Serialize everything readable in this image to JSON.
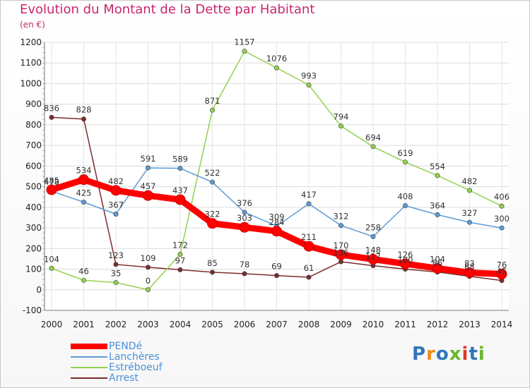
{
  "title": "Evolution du Montant de la Dette par Habitant",
  "subtitle": "(en €)",
  "logo": {
    "text": "Proxiti",
    "colors": [
      "#2e77bb",
      "#f08a1c",
      "#2e77bb",
      "#6ab82e",
      "#d93a2a",
      "#2e77bb",
      "#6ab82e"
    ]
  },
  "chart_data": {
    "type": "line",
    "x": [
      2000,
      2001,
      2002,
      2003,
      2004,
      2005,
      2006,
      2007,
      2008,
      2009,
      2010,
      2011,
      2012,
      2013,
      2014
    ],
    "ylim": [
      -100,
      1200
    ],
    "yticks": [
      -100,
      0,
      100,
      200,
      300,
      400,
      500,
      600,
      700,
      800,
      900,
      1000,
      1100,
      1200
    ],
    "grid": true,
    "legend_position": "bottom-left",
    "series": [
      {
        "name": "PENDé",
        "color": "#ff0000",
        "values": [
          485,
          534,
          482,
          457,
          437,
          322,
          303,
          284,
          211,
          170,
          148,
          126,
          104,
          83,
          76
        ],
        "labels": [
          "485",
          "534",
          "482",
          "457",
          "437",
          "322",
          "303",
          "284",
          "211",
          "170",
          "148",
          "126",
          "104",
          "83",
          "76"
        ]
      },
      {
        "name": "Lanchères",
        "color": "#5b9bd5",
        "values": [
          478,
          425,
          367,
          591,
          589,
          522,
          376,
          309,
          417,
          312,
          258,
          408,
          364,
          327,
          300
        ],
        "labels": [
          "478",
          "425",
          "367",
          "591",
          "589",
          "522",
          "376",
          "309",
          "417",
          "312",
          "258",
          "408",
          "364",
          "327",
          "300"
        ]
      },
      {
        "name": "Estréboeuf",
        "color": "#92d050",
        "values": [
          104,
          46,
          35,
          0,
          172,
          871,
          1157,
          1076,
          993,
          794,
          694,
          619,
          554,
          482,
          406
        ],
        "labels": [
          "104",
          "46",
          "35",
          "0",
          "172",
          "871",
          "1157",
          "1076",
          "993",
          "794",
          "694",
          "619",
          "554",
          "482",
          "406"
        ]
      },
      {
        "name": "Arrest",
        "color": "#7b2c2c",
        "values": [
          836,
          828,
          123,
          109,
          97,
          85,
          78,
          69,
          61,
          136,
          117,
          100,
          86,
          65,
          45
        ],
        "labels": [
          "836",
          "828",
          "123",
          "109",
          "97",
          "85",
          "78",
          "69",
          "61",
          "136",
          "117",
          "100",
          "86",
          "65",
          "45"
        ]
      }
    ]
  }
}
